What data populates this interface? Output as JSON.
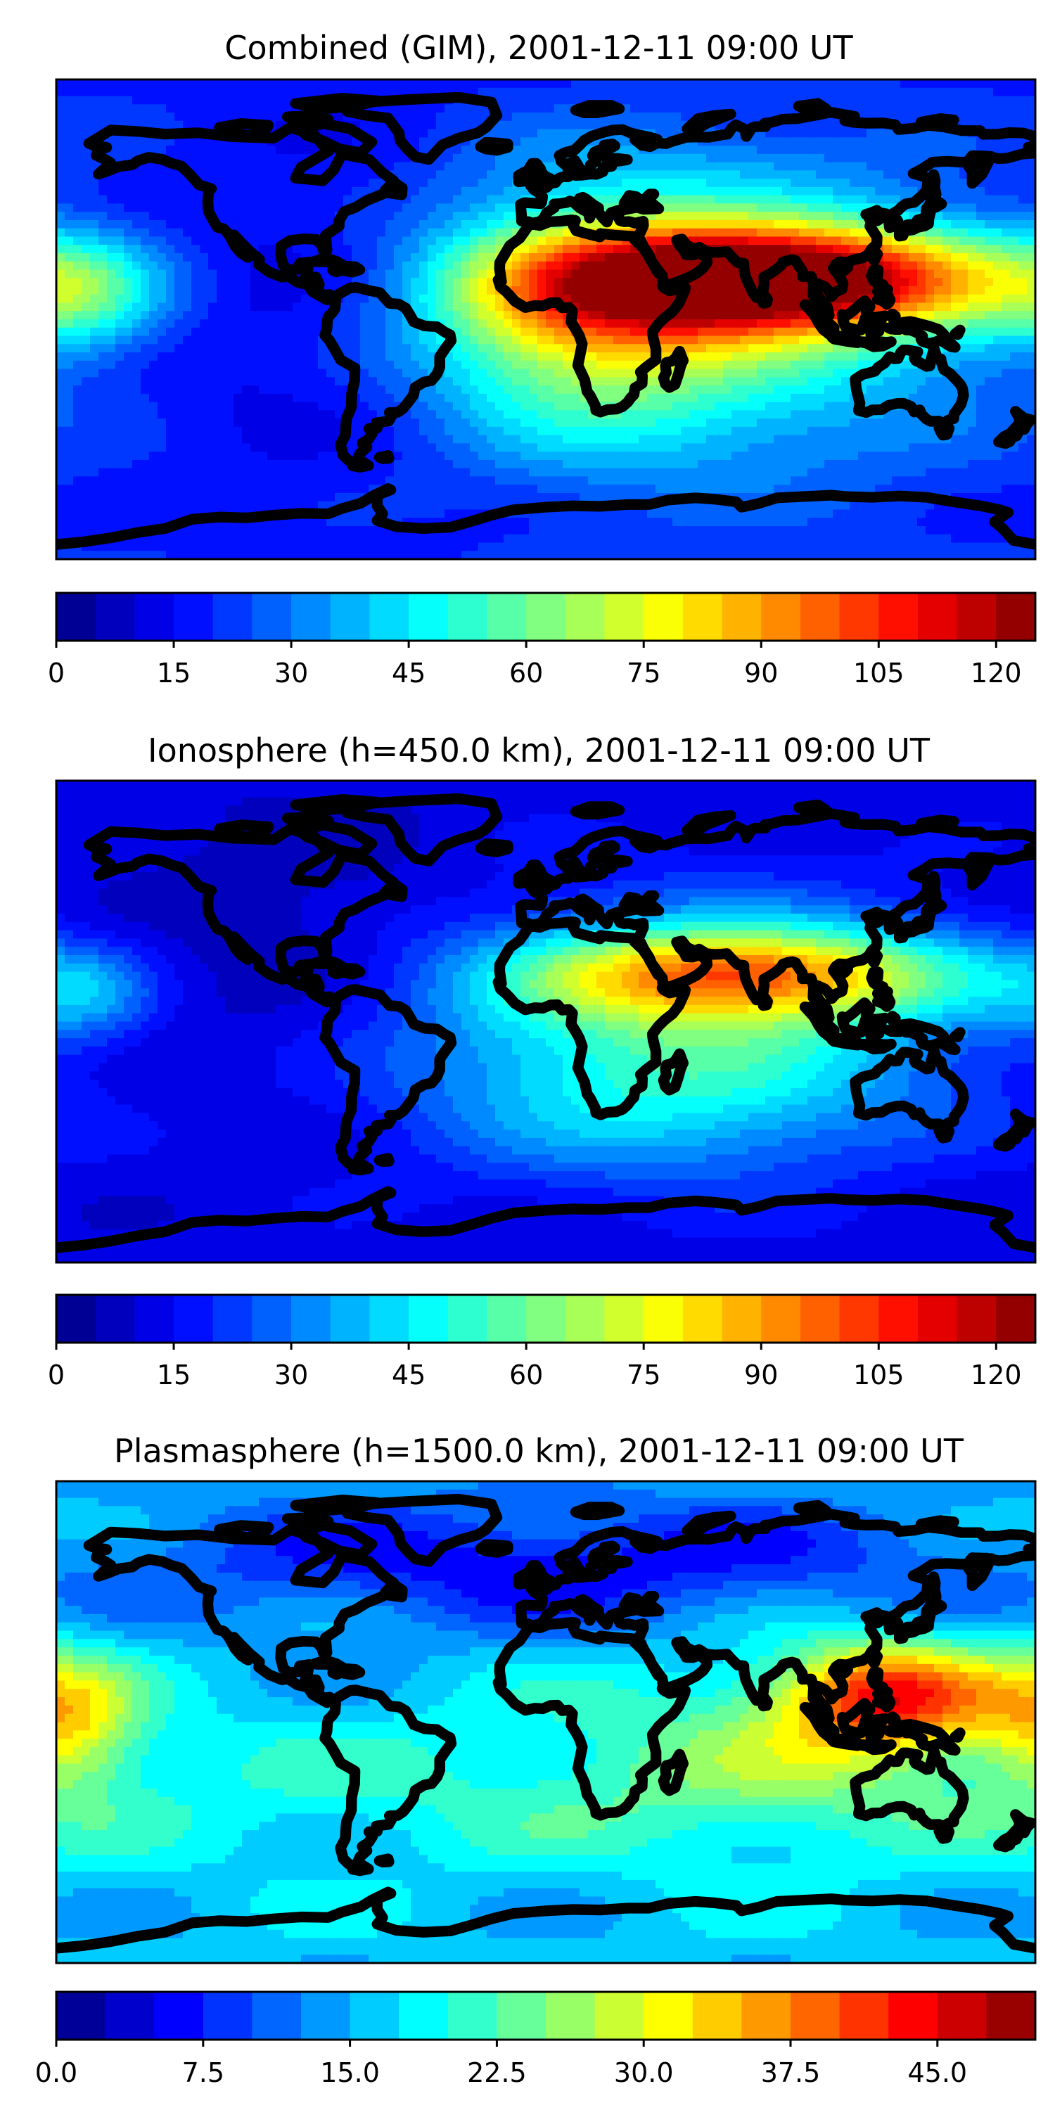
{
  "panels": [
    {
      "title": "Combined (GIM), 2001-12-11 09:00 UT",
      "colorbar": {
        "min": 0,
        "max": 125,
        "levels": 25,
        "step": 5,
        "ticks": [
          0,
          15,
          30,
          45,
          60,
          75,
          90,
          105,
          120
        ],
        "tick_labels": [
          "0",
          "15",
          "30",
          "45",
          "60",
          "75",
          "90",
          "105",
          "120"
        ]
      },
      "field": {
        "background": 20,
        "blobs": [
          {
            "lon": 82,
            "lat": 16,
            "value": 100,
            "slon": 55,
            "slat": 14
          },
          {
            "lon": 72,
            "lat": 8,
            "value": 28,
            "slon": 80,
            "slat": 20
          },
          {
            "lon": 10,
            "lat": 5,
            "value": 40,
            "slon": 40,
            "slat": 30
          },
          {
            "lon": 55,
            "lat": -30,
            "value": 20,
            "slon": 70,
            "slat": 25
          },
          {
            "lon": -170,
            "lat": 10,
            "value": 25,
            "slon": 20,
            "slat": 15
          },
          {
            "lon": 60,
            "lat": 55,
            "value": 12,
            "slon": 60,
            "slat": 15
          },
          {
            "lon": -80,
            "lat": 0,
            "value": -10,
            "slon": 50,
            "slat": 50
          }
        ]
      }
    },
    {
      "title": "Ionosphere  (h=450.0 km), 2001-12-11 09:00 UT",
      "colorbar": {
        "min": 0,
        "max": 125,
        "levels": 25,
        "step": 5,
        "ticks": [
          0,
          15,
          30,
          45,
          60,
          75,
          90,
          105,
          120
        ],
        "tick_labels": [
          "0",
          "15",
          "30",
          "45",
          "60",
          "75",
          "90",
          "105",
          "120"
        ]
      },
      "field": {
        "background": 12,
        "blobs": [
          {
            "lon": 75,
            "lat": 18,
            "value": 60,
            "slon": 55,
            "slat": 12
          },
          {
            "lon": 50,
            "lat": 0,
            "value": 38,
            "slon": 75,
            "slat": 30
          },
          {
            "lon": 40,
            "lat": -35,
            "value": 15,
            "slon": 60,
            "slat": 20
          },
          {
            "lon": -170,
            "lat": 10,
            "value": 18,
            "slon": 18,
            "slat": 12
          },
          {
            "lon": -90,
            "lat": 25,
            "value": -8,
            "slon": 45,
            "slat": 35
          }
        ]
      }
    },
    {
      "title": "Plasmasphere (h=1500.0 km), 2001-12-11 09:00 UT",
      "colorbar": {
        "min": 0,
        "max": 50,
        "levels": 20,
        "step": 2.5,
        "ticks": [
          0.0,
          7.5,
          15.0,
          22.5,
          30.0,
          37.5,
          45.0
        ],
        "tick_labels": [
          "0.0",
          "7.5",
          "15.0",
          "22.5",
          "30.0",
          "37.5",
          "45.0"
        ]
      },
      "field": {
        "background": 16,
        "blobs": [
          {
            "lon": 125,
            "lat": 10,
            "value": 24,
            "slon": 28,
            "slat": 14
          },
          {
            "lon": -175,
            "lat": 0,
            "value": 14,
            "slon": 18,
            "slat": 18
          },
          {
            "lon": 0,
            "lat": 60,
            "value": -10,
            "slon": 120,
            "slat": 18
          },
          {
            "lon": 0,
            "lat": -25,
            "value": 4,
            "slon": 180,
            "slat": 20
          },
          {
            "lon": 90,
            "lat": -10,
            "value": 6,
            "slon": 60,
            "slat": 25
          }
        ]
      }
    }
  ]
}
